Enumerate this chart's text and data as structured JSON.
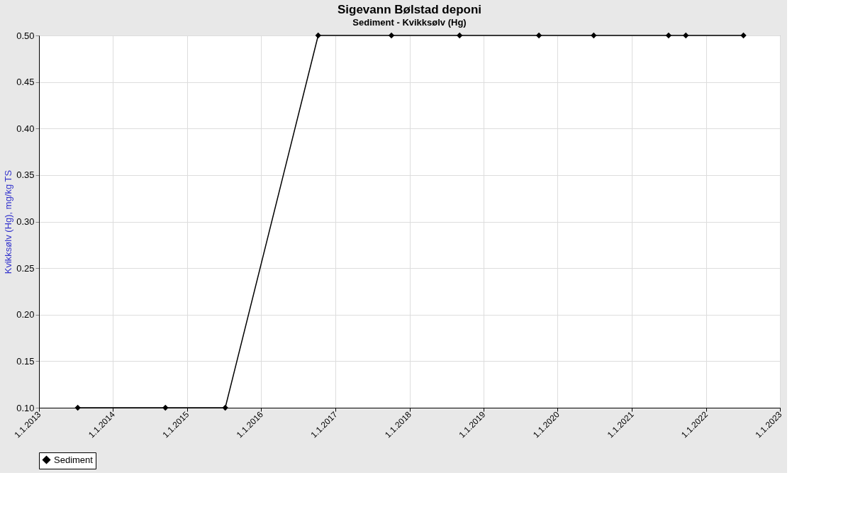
{
  "chart_data": {
    "type": "line",
    "title": "Sigevann Bølstad deponi",
    "subtitle": "Sediment - Kvikksølv (Hg)",
    "ylabel": "Kvikksølv (Hg), mg/kg TS",
    "x": [
      "2013-07-11",
      "2014-09-16",
      "2015-07-08",
      "2016-10-08",
      "2017-10-04",
      "2018-09-05",
      "2019-10-01",
      "2020-06-27",
      "2021-07-01",
      "2021-09-24",
      "2022-07-05"
    ],
    "series": [
      {
        "name": "Sediment",
        "color": "#000000",
        "values": [
          0.1,
          0.1,
          0.1,
          0.5,
          0.5,
          0.5,
          0.5,
          0.5,
          0.5,
          0.5,
          0.5
        ]
      }
    ],
    "xlim": [
      "2013-01-01",
      "2023-01-01"
    ],
    "xticks": [
      {
        "value": "2013-01-01",
        "label": "1.1.2013"
      },
      {
        "value": "2014-01-01",
        "label": "1.1.2014"
      },
      {
        "value": "2015-01-01",
        "label": "1.1.2015"
      },
      {
        "value": "2016-01-01",
        "label": "1.1.2016"
      },
      {
        "value": "2017-01-01",
        "label": "1.1.2017"
      },
      {
        "value": "2018-01-01",
        "label": "1.1.2018"
      },
      {
        "value": "2019-01-01",
        "label": "1.1.2019"
      },
      {
        "value": "2020-01-01",
        "label": "1.1.2020"
      },
      {
        "value": "2021-01-01",
        "label": "1.1.2021"
      },
      {
        "value": "2022-01-01",
        "label": "1.1.2022"
      },
      {
        "value": "2023-01-01",
        "label": "1.1.2023"
      }
    ],
    "ylim": [
      0.1,
      0.5
    ],
    "yticks": [
      {
        "value": 0.1,
        "label": "0.10"
      },
      0.15,
      {
        "value": 0.2,
        "label": "0.20"
      },
      0.25,
      {
        "value": 0.3,
        "label": "0.30"
      },
      0.35,
      {
        "value": 0.4,
        "label": "0.40"
      },
      0.45,
      {
        "value": 0.5,
        "label": "0.50"
      }
    ],
    "grid": true,
    "legend": "bottom",
    "marker": "diamond",
    "line_style": "solid"
  }
}
